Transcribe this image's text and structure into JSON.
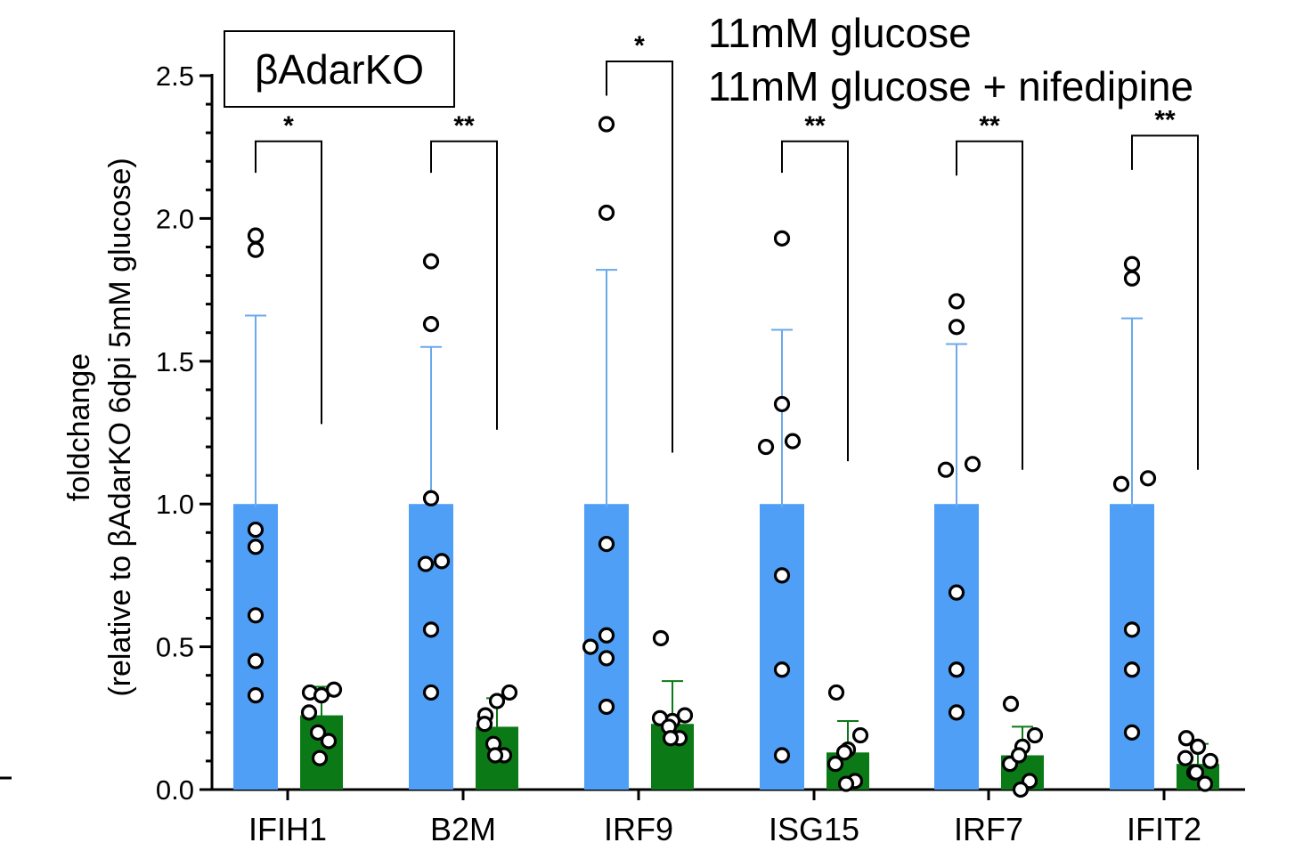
{
  "chart_data": {
    "type": "bar",
    "title": "βAdarKO",
    "ylabel_line1": "foldchange",
    "ylabel_line2": "(relative to βAdarKO 6dpi 5mM glucose)",
    "xlabel": "",
    "ylim": [
      0,
      2.5
    ],
    "y_ticks": [
      "0.0",
      "0.5",
      "1.0",
      "1.5",
      "2.0",
      "2.5"
    ],
    "grid": false,
    "legend_position": "top-right",
    "categories": [
      "IFIH1",
      "B2M",
      "IRF9",
      "ISG15",
      "IRF7",
      "IFIT2"
    ],
    "series": [
      {
        "name": "11mM glucose",
        "color": "#4f9ff7",
        "text_color": "#4f92d8",
        "values": [
          1.0,
          1.0,
          1.0,
          1.0,
          1.0,
          1.0
        ],
        "error_upper": [
          1.66,
          1.55,
          1.82,
          1.61,
          1.56,
          1.65
        ],
        "points": [
          [
            1.94,
            1.89,
            0.91,
            0.85,
            0.61,
            0.45,
            0.33
          ],
          [
            1.85,
            1.63,
            1.02,
            0.79,
            0.8,
            0.56,
            0.34
          ],
          [
            2.33,
            2.02,
            0.86,
            0.5,
            0.54,
            0.46,
            0.29
          ],
          [
            1.93,
            1.35,
            1.2,
            1.22,
            0.75,
            0.42,
            0.12
          ],
          [
            1.71,
            1.62,
            1.12,
            1.14,
            0.69,
            0.42,
            0.27
          ],
          [
            1.84,
            1.79,
            1.07,
            1.09,
            0.56,
            0.42,
            0.2
          ]
        ]
      },
      {
        "name": "11mM glucose + nifedipine",
        "color": "#0b7a16",
        "text_color": "#5a8c3a",
        "values": [
          0.26,
          0.22,
          0.23,
          0.13,
          0.12,
          0.09
        ],
        "error_upper": [
          0.36,
          0.32,
          0.38,
          0.24,
          0.22,
          0.16
        ],
        "points": [
          [
            0.34,
            0.33,
            0.35,
            0.27,
            0.2,
            0.17,
            0.11
          ],
          [
            0.26,
            0.31,
            0.34,
            0.23,
            0.16,
            0.12,
            0.12
          ],
          [
            0.53,
            0.24,
            0.26,
            0.25,
            0.22,
            0.18,
            0.18
          ],
          [
            0.34,
            0.14,
            0.19,
            0.09,
            0.13,
            0.03,
            0.02
          ],
          [
            0.3,
            0.15,
            0.19,
            0.09,
            0.12,
            0.03,
            0.0
          ],
          [
            0.18,
            0.15,
            0.1,
            0.11,
            0.06,
            0.02,
            0.06
          ]
        ]
      }
    ],
    "significance": [
      {
        "label": "*",
        "left_y": 2.16,
        "right_y": 1.28,
        "top_y": 2.27
      },
      {
        "label": "**",
        "left_y": 2.16,
        "right_y": 1.26,
        "top_y": 2.27
      },
      {
        "label": "*",
        "left_y": 2.43,
        "right_y": 1.18,
        "top_y": 2.55
      },
      {
        "label": "**",
        "left_y": 2.16,
        "right_y": 1.15,
        "top_y": 2.27
      },
      {
        "label": "**",
        "left_y": 2.15,
        "right_y": 1.12,
        "top_y": 2.27
      },
      {
        "label": "**",
        "left_y": 2.17,
        "right_y": 1.12,
        "top_y": 2.29
      }
    ]
  }
}
